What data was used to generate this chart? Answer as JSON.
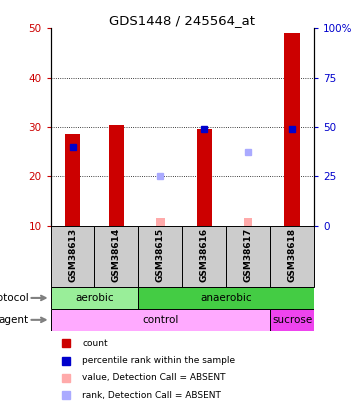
{
  "title": "GDS1448 / 245564_at",
  "samples": [
    "GSM38613",
    "GSM38614",
    "GSM38615",
    "GSM38616",
    "GSM38617",
    "GSM38618"
  ],
  "bar_values": [
    28.5,
    30.5,
    null,
    29.5,
    null,
    49.0
  ],
  "bar_color": "#cc0000",
  "blue_square_values": [
    26.0,
    null,
    null,
    29.5,
    null,
    29.5
  ],
  "blue_square_color": "#0000cc",
  "pink_bar_values": [
    null,
    null,
    11.5,
    null,
    11.5,
    null
  ],
  "pink_bar_color": "#ffaaaa",
  "light_blue_square_values": [
    null,
    null,
    20.0,
    null,
    25.0,
    null
  ],
  "light_blue_square_color": "#aaaaff",
  "ylim_left": [
    10,
    50
  ],
  "ylim_right": [
    0,
    100
  ],
  "yticks_left": [
    10,
    20,
    30,
    40,
    50
  ],
  "yticks_right": [
    0,
    25,
    50,
    75,
    100
  ],
  "ytick_labels_left": [
    "10",
    "20",
    "30",
    "40",
    "50"
  ],
  "ytick_labels_right": [
    "0",
    "25",
    "50",
    "75",
    "100%"
  ],
  "grid_lines": [
    20,
    30,
    40
  ],
  "protocol_segments": [
    {
      "label": "aerobic",
      "start": 0,
      "end": 2,
      "color": "#99ee99"
    },
    {
      "label": "anaerobic",
      "start": 2,
      "end": 6,
      "color": "#44cc44"
    }
  ],
  "agent_segments": [
    {
      "label": "control",
      "start": 0,
      "end": 5,
      "color": "#ffaaff"
    },
    {
      "label": "sucrose",
      "start": 5,
      "end": 6,
      "color": "#ee44ee"
    }
  ],
  "legend_items": [
    {
      "color": "#cc0000",
      "label": "count"
    },
    {
      "color": "#0000cc",
      "label": "percentile rank within the sample"
    },
    {
      "color": "#ffaaaa",
      "label": "value, Detection Call = ABSENT"
    },
    {
      "color": "#aaaaff",
      "label": "rank, Detection Call = ABSENT"
    }
  ],
  "left_axis_color": "#cc0000",
  "right_axis_color": "#0000cc",
  "bar_width": 0.35,
  "sample_box_color": "#cccccc",
  "bg_color": "#ffffff"
}
